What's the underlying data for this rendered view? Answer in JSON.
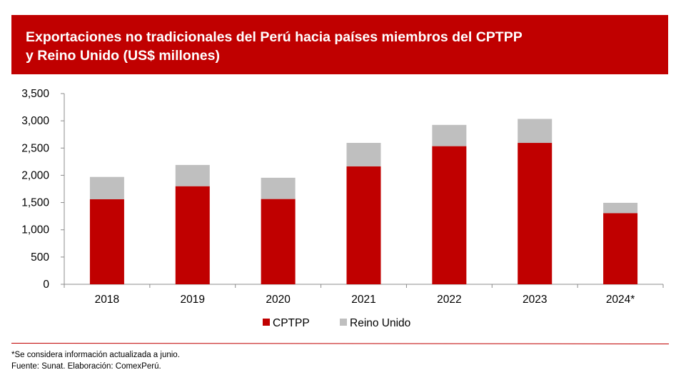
{
  "title": {
    "line1": "Exportaciones no tradicionales del Perú hacia países miembros del CPTPP",
    "line2": "y Reino Unido (US$ millones)"
  },
  "colors": {
    "banner": "#c00000",
    "cptpp": "#c00000",
    "reino_unido": "#bfbfbf",
    "divider": "#c00000"
  },
  "chart_data": {
    "type": "bar",
    "stacked": true,
    "categories": [
      "2018",
      "2019",
      "2020",
      "2021",
      "2022",
      "2023",
      "2024*"
    ],
    "series": [
      {
        "name": "CPTPP",
        "values": [
          1560,
          1800,
          1565,
          2165,
          2535,
          2595,
          1305
        ]
      },
      {
        "name": "Reino Unido",
        "values": [
          410,
          390,
          390,
          430,
          390,
          440,
          190
        ]
      }
    ],
    "ylim": [
      0,
      3500
    ],
    "yticks": [
      0,
      500,
      1000,
      1500,
      2000,
      2500,
      3000,
      3500
    ],
    "ytick_labels": [
      "0",
      "500",
      "1,000",
      "1,500",
      "2,000",
      "2,500",
      "3,000",
      "3,500"
    ],
    "grid": false,
    "legend": "bottom-center"
  },
  "notes": {
    "footnote": "*Se considera información actualizada a junio.",
    "source": "Fuente: Sunat. Elaboración: ComexPerú."
  }
}
